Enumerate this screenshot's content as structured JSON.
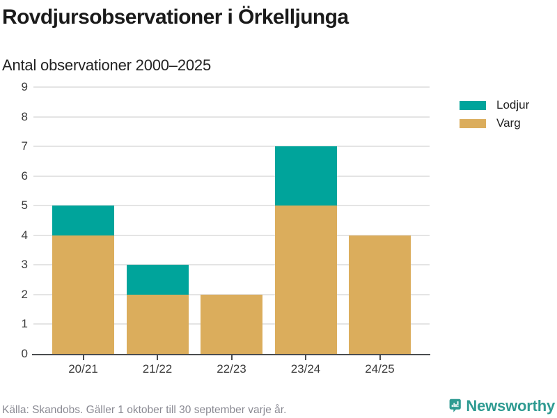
{
  "header": {
    "title": "Rovdjursobservationer i Örkelljunga",
    "subtitle": "Antal observationer 2000–2025"
  },
  "chart_data": {
    "type": "bar",
    "stacked": true,
    "title": "Rovdjursobservationer i Örkelljunga",
    "subtitle": "Antal observationer 2000–2025",
    "categories": [
      "20/21",
      "21/22",
      "22/23",
      "23/24",
      "24/25"
    ],
    "series": [
      {
        "name": "Lodjur",
        "color": "#00A49B",
        "values": [
          1,
          1,
          0,
          2,
          0
        ]
      },
      {
        "name": "Varg",
        "color": "#DBAD5C",
        "values": [
          4,
          2,
          2,
          5,
          4
        ]
      }
    ],
    "totals": [
      5,
      3,
      2,
      7,
      4
    ],
    "xlabel": "",
    "ylabel": "",
    "ylim": [
      0,
      9
    ],
    "yticks": [
      0,
      1,
      2,
      3,
      4,
      5,
      6,
      7,
      8,
      9
    ],
    "grid": true,
    "legend_position": "right"
  },
  "legend": {
    "items": [
      {
        "label": "Lodjur",
        "color": "#00A49B"
      },
      {
        "label": "Varg",
        "color": "#DBAD5C"
      }
    ]
  },
  "footer": {
    "source": "Källa: Skandobs. Gäller 1 oktober till 30 september varje år.",
    "brand": "Newsworthy",
    "brand_color": "#2F9B92"
  },
  "icons": {
    "logo": "bar-chart-speech-bubble-icon"
  }
}
